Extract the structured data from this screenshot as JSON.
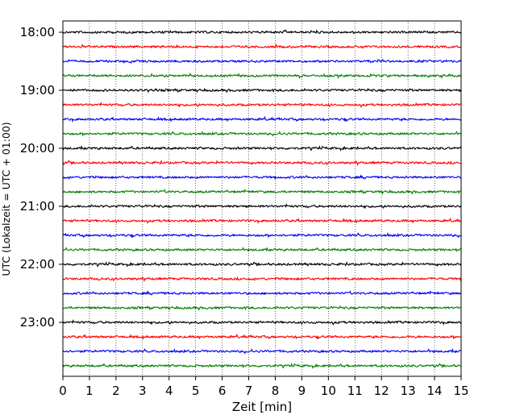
{
  "chart_data": {
    "type": "line",
    "title": "",
    "xlabel": "Zeit  [min]",
    "ylabel": "UTC (Lokalzeit = UTC + 01:00)",
    "xlim": [
      0,
      15
    ],
    "x_ticks": [
      "0",
      "1",
      "2",
      "3",
      "4",
      "5",
      "6",
      "7",
      "8",
      "9",
      "10",
      "11",
      "12",
      "13",
      "14",
      "15"
    ],
    "y_tick_labels": [
      "18:00",
      "19:00",
      "20:00",
      "21:00",
      "22:00",
      "23:00"
    ],
    "trace_start_times": [
      "18:00",
      "18:15",
      "18:30",
      "18:45",
      "19:00",
      "19:15",
      "19:30",
      "19:45",
      "20:00",
      "20:15",
      "20:30",
      "20:45",
      "21:00",
      "21:15",
      "21:30",
      "21:45",
      "22:00",
      "22:15",
      "22:30",
      "22:45",
      "23:00",
      "23:15",
      "23:30",
      "23:45"
    ],
    "trace_colors": [
      "#000000",
      "#ff0000",
      "#0000ff",
      "#008000"
    ],
    "trace_minutes_per_line": 15,
    "grid": "vertical dotted at each minute"
  }
}
